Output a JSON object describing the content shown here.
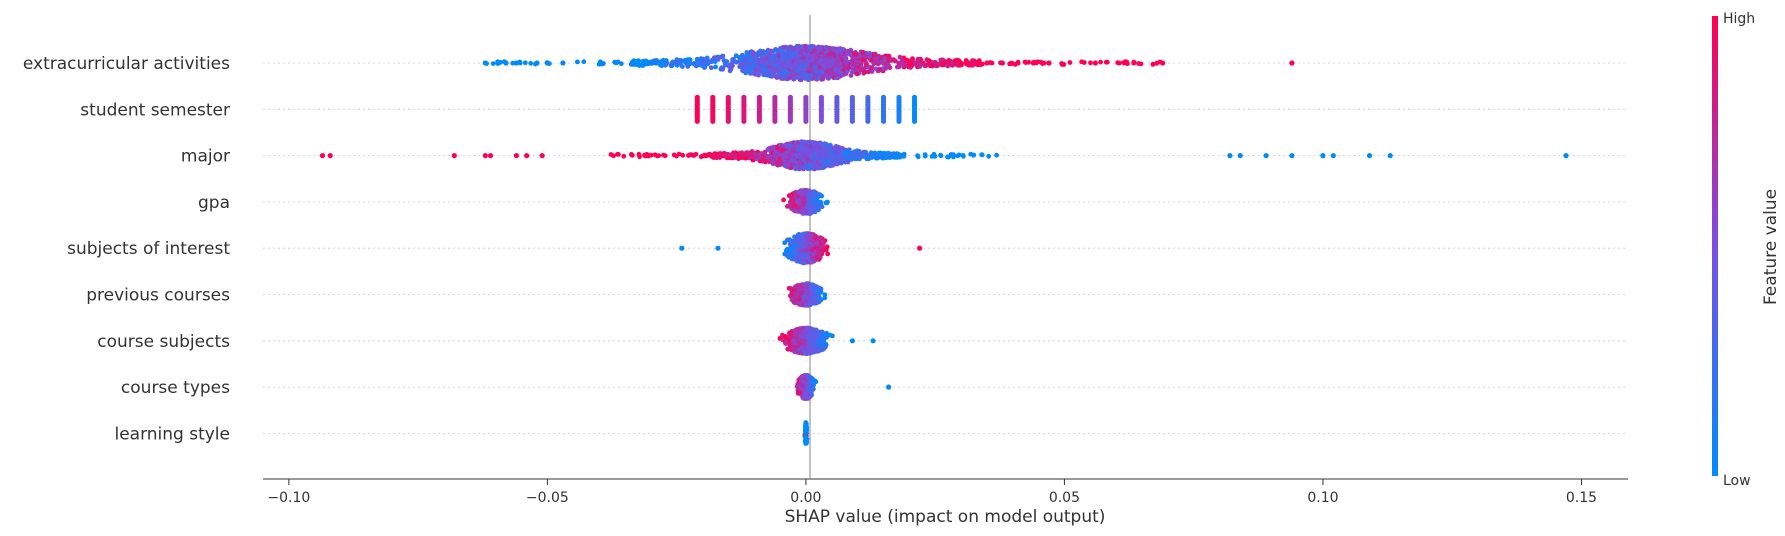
{
  "chart_data": {
    "type": "scatter",
    "subtype": "shap-beeswarm",
    "xlabel": "SHAP value (impact on model output)",
    "xlim": [
      -0.105,
      0.159
    ],
    "xticks": [
      -0.1,
      -0.05,
      0.0,
      0.05,
      0.1,
      0.15
    ],
    "xtick_labels": [
      "−0.10",
      "−0.05",
      "0.00",
      "0.05",
      "0.10",
      "0.15"
    ],
    "grid": false,
    "colorbar": {
      "label": "Feature value",
      "high_label": "High",
      "low_label": "Low",
      "colors": [
        "#008bfb",
        "#7b4fe0",
        "#ff0052"
      ]
    },
    "features": [
      {
        "name": "extracurricular activities",
        "range": [
          -0.062,
          0.094
        ],
        "outliers": [
          {
            "x": -0.062,
            "v": 0.0
          },
          {
            "x": -0.058,
            "v": 0.0
          },
          {
            "x": -0.056,
            "v": 0.0
          },
          {
            "x": -0.052,
            "v": 0.0
          },
          {
            "x": -0.05,
            "v": 0.05
          },
          {
            "x": -0.047,
            "v": 0.05
          },
          {
            "x": 0.032,
            "v": 0.9
          },
          {
            "x": 0.035,
            "v": 0.95
          },
          {
            "x": 0.038,
            "v": 0.95
          },
          {
            "x": 0.041,
            "v": 1.0
          },
          {
            "x": 0.044,
            "v": 1.0
          },
          {
            "x": 0.047,
            "v": 1.0
          },
          {
            "x": 0.056,
            "v": 1.0
          },
          {
            "x": 0.069,
            "v": 1.0
          },
          {
            "x": 0.094,
            "v": 1.0
          }
        ]
      },
      {
        "name": "student semester",
        "columns": [
          {
            "x": -0.021,
            "v": 1.0
          },
          {
            "x": -0.018,
            "v": 0.95
          },
          {
            "x": -0.015,
            "v": 0.9
          },
          {
            "x": -0.012,
            "v": 0.85
          },
          {
            "x": -0.009,
            "v": 0.8
          },
          {
            "x": -0.006,
            "v": 0.72
          },
          {
            "x": -0.003,
            "v": 0.65
          },
          {
            "x": 0.0,
            "v": 0.58
          },
          {
            "x": 0.003,
            "v": 0.5
          },
          {
            "x": 0.006,
            "v": 0.42
          },
          {
            "x": 0.009,
            "v": 0.35
          },
          {
            "x": 0.012,
            "v": 0.28
          },
          {
            "x": 0.015,
            "v": 0.2
          },
          {
            "x": 0.018,
            "v": 0.1
          },
          {
            "x": 0.021,
            "v": 0.0
          }
        ]
      },
      {
        "name": "major",
        "range": [
          -0.094,
          0.147
        ],
        "outliers": [
          {
            "x": -0.0935,
            "v": 1.0
          },
          {
            "x": -0.092,
            "v": 1.0
          },
          {
            "x": -0.068,
            "v": 1.0
          },
          {
            "x": -0.062,
            "v": 1.0
          },
          {
            "x": -0.061,
            "v": 1.0
          },
          {
            "x": -0.056,
            "v": 1.0
          },
          {
            "x": -0.054,
            "v": 1.0
          },
          {
            "x": -0.051,
            "v": 0.95
          },
          {
            "x": 0.082,
            "v": 0.0
          },
          {
            "x": 0.084,
            "v": 0.0
          },
          {
            "x": 0.089,
            "v": 0.0
          },
          {
            "x": 0.094,
            "v": 0.0
          },
          {
            "x": 0.1,
            "v": 0.0
          },
          {
            "x": 0.102,
            "v": 0.0
          },
          {
            "x": 0.109,
            "v": 0.0
          },
          {
            "x": 0.113,
            "v": 0.0
          },
          {
            "x": 0.147,
            "v": 0.0
          }
        ]
      },
      {
        "name": "gpa",
        "range": [
          -0.007,
          0.007
        ]
      },
      {
        "name": "subjects of interest",
        "range": [
          -0.024,
          0.022
        ],
        "outliers": [
          {
            "x": -0.024,
            "v": 0.0
          },
          {
            "x": -0.017,
            "v": 0.0
          },
          {
            "x": 0.022,
            "v": 1.0
          }
        ]
      },
      {
        "name": "previous courses",
        "range": [
          -0.007,
          0.007
        ]
      },
      {
        "name": "course subjects",
        "range": [
          -0.01,
          0.013
        ],
        "outliers": [
          {
            "x": 0.013,
            "v": 0.0
          },
          {
            "x": 0.009,
            "v": 0.0
          }
        ]
      },
      {
        "name": "course types",
        "range": [
          -0.004,
          0.016
        ],
        "outliers": [
          {
            "x": 0.016,
            "v": 0.0
          }
        ]
      },
      {
        "name": "learning style",
        "range": [
          0.0,
          0.0
        ]
      }
    ]
  }
}
